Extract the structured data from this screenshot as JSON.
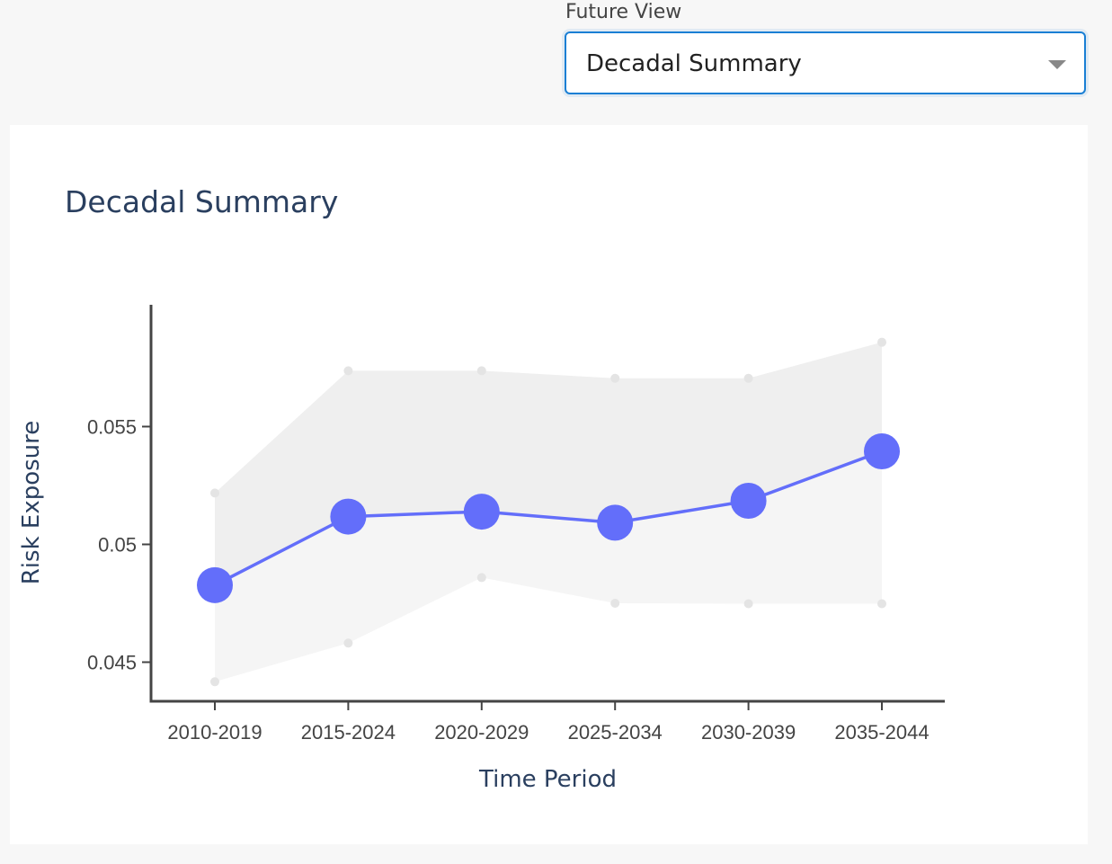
{
  "filter": {
    "label": "Future View",
    "selected": "Decadal Summary"
  },
  "chart_data": {
    "type": "line",
    "title": "Decadal Summary",
    "xlabel": "Time Period",
    "ylabel": "Risk Exposure",
    "categories": [
      "2010-2019",
      "2015-2024",
      "2020-2029",
      "2025-2034",
      "2030-2039",
      "2035-2044"
    ],
    "series": [
      {
        "values": [
          0.04827,
          0.05118,
          0.05139,
          0.05092,
          0.05185,
          0.05395
        ]
      }
    ],
    "band": {
      "upper": [
        0.05218,
        0.05737,
        0.05737,
        0.05705,
        0.05705,
        0.05858
      ],
      "lower": [
        0.04417,
        0.04581,
        0.04859,
        0.0475,
        0.04748,
        0.04748
      ]
    },
    "yticks": [
      0.045,
      0.05,
      0.055
    ],
    "ytick_labels": [
      "0.045",
      "0.05",
      "0.055"
    ],
    "ylim": [
      0.04334,
      0.06017
    ],
    "grid": false,
    "colors": {
      "line": "#636efa",
      "band_upper_fill": "#efefef",
      "band_lower_fill": "#f5f5f5",
      "band_marker": "#e4e4e4",
      "axis": "#444444"
    }
  }
}
